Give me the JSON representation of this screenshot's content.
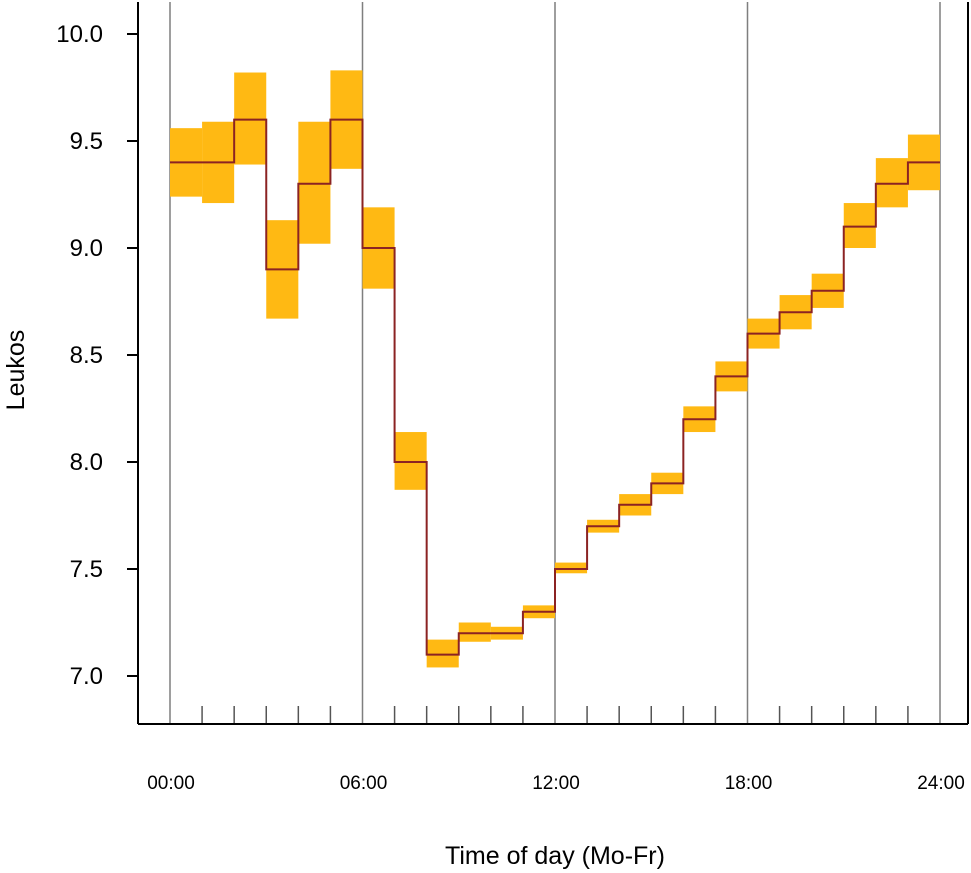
{
  "chart_data": {
    "type": "step-with-ci",
    "xlabel": "Time of day (Mo-Fr)",
    "ylabel": "Leukos",
    "xlim": [
      0,
      24
    ],
    "ylim": [
      6.8,
      10.2
    ],
    "y_ticks": [
      "7.0",
      "7.5",
      "8.0",
      "8.5",
      "9.0",
      "9.5",
      "10.0"
    ],
    "x_ticks": [
      "00:00",
      "06:00",
      "12:00",
      "18:00",
      "24:00"
    ],
    "bins": [
      {
        "start": 0,
        "end": 1,
        "mean": 9.4,
        "lower": 9.24,
        "upper": 9.56
      },
      {
        "start": 1,
        "end": 2,
        "mean": 9.4,
        "lower": 9.21,
        "upper": 9.59
      },
      {
        "start": 2,
        "end": 3,
        "mean": 9.6,
        "lower": 9.39,
        "upper": 9.82
      },
      {
        "start": 3,
        "end": 4,
        "mean": 8.9,
        "lower": 8.67,
        "upper": 9.13
      },
      {
        "start": 4,
        "end": 5,
        "mean": 9.3,
        "lower": 9.02,
        "upper": 9.59
      },
      {
        "start": 5,
        "end": 6,
        "mean": 9.6,
        "lower": 9.37,
        "upper": 9.83
      },
      {
        "start": 6,
        "end": 7,
        "mean": 9.0,
        "lower": 8.81,
        "upper": 9.19
      },
      {
        "start": 7,
        "end": 8,
        "mean": 8.0,
        "lower": 7.87,
        "upper": 8.14
      },
      {
        "start": 8,
        "end": 9,
        "mean": 7.1,
        "lower": 7.04,
        "upper": 7.17
      },
      {
        "start": 9,
        "end": 10,
        "mean": 7.2,
        "lower": 7.16,
        "upper": 7.25
      },
      {
        "start": 10,
        "end": 11,
        "mean": 7.2,
        "lower": 7.17,
        "upper": 7.23
      },
      {
        "start": 11,
        "end": 12,
        "mean": 7.3,
        "lower": 7.27,
        "upper": 7.33
      },
      {
        "start": 12,
        "end": 13,
        "mean": 7.5,
        "lower": 7.48,
        "upper": 7.53
      },
      {
        "start": 13,
        "end": 14,
        "mean": 7.7,
        "lower": 7.67,
        "upper": 7.73
      },
      {
        "start": 14,
        "end": 15,
        "mean": 7.8,
        "lower": 7.75,
        "upper": 7.85
      },
      {
        "start": 15,
        "end": 16,
        "mean": 7.9,
        "lower": 7.85,
        "upper": 7.95
      },
      {
        "start": 16,
        "end": 17,
        "mean": 8.2,
        "lower": 8.14,
        "upper": 8.26
      },
      {
        "start": 17,
        "end": 18,
        "mean": 8.4,
        "lower": 8.33,
        "upper": 8.47
      },
      {
        "start": 18,
        "end": 19,
        "mean": 8.6,
        "lower": 8.53,
        "upper": 8.67
      },
      {
        "start": 19,
        "end": 20,
        "mean": 8.7,
        "lower": 8.62,
        "upper": 8.78
      },
      {
        "start": 20,
        "end": 21,
        "mean": 8.8,
        "lower": 8.72,
        "upper": 8.88
      },
      {
        "start": 21,
        "end": 22,
        "mean": 9.1,
        "lower": 9.0,
        "upper": 9.21
      },
      {
        "start": 22,
        "end": 23,
        "mean": 9.3,
        "lower": 9.19,
        "upper": 9.42
      },
      {
        "start": 23,
        "end": 24,
        "mean": 9.4,
        "lower": 9.27,
        "upper": 9.53
      }
    ],
    "vertical_gridlines_at": [
      0,
      6,
      12,
      18,
      24
    ],
    "minor_ticks_at": [
      1,
      2,
      3,
      4,
      5,
      7,
      8,
      9,
      10,
      11,
      13,
      14,
      15,
      16,
      17,
      19,
      20,
      21,
      22,
      23
    ],
    "colors": {
      "ci_fill": "#ffb913",
      "mean_line": "#8b2323",
      "gridline": "#7f7f7f",
      "axis": "#000000"
    },
    "grid": "vertical-only"
  }
}
